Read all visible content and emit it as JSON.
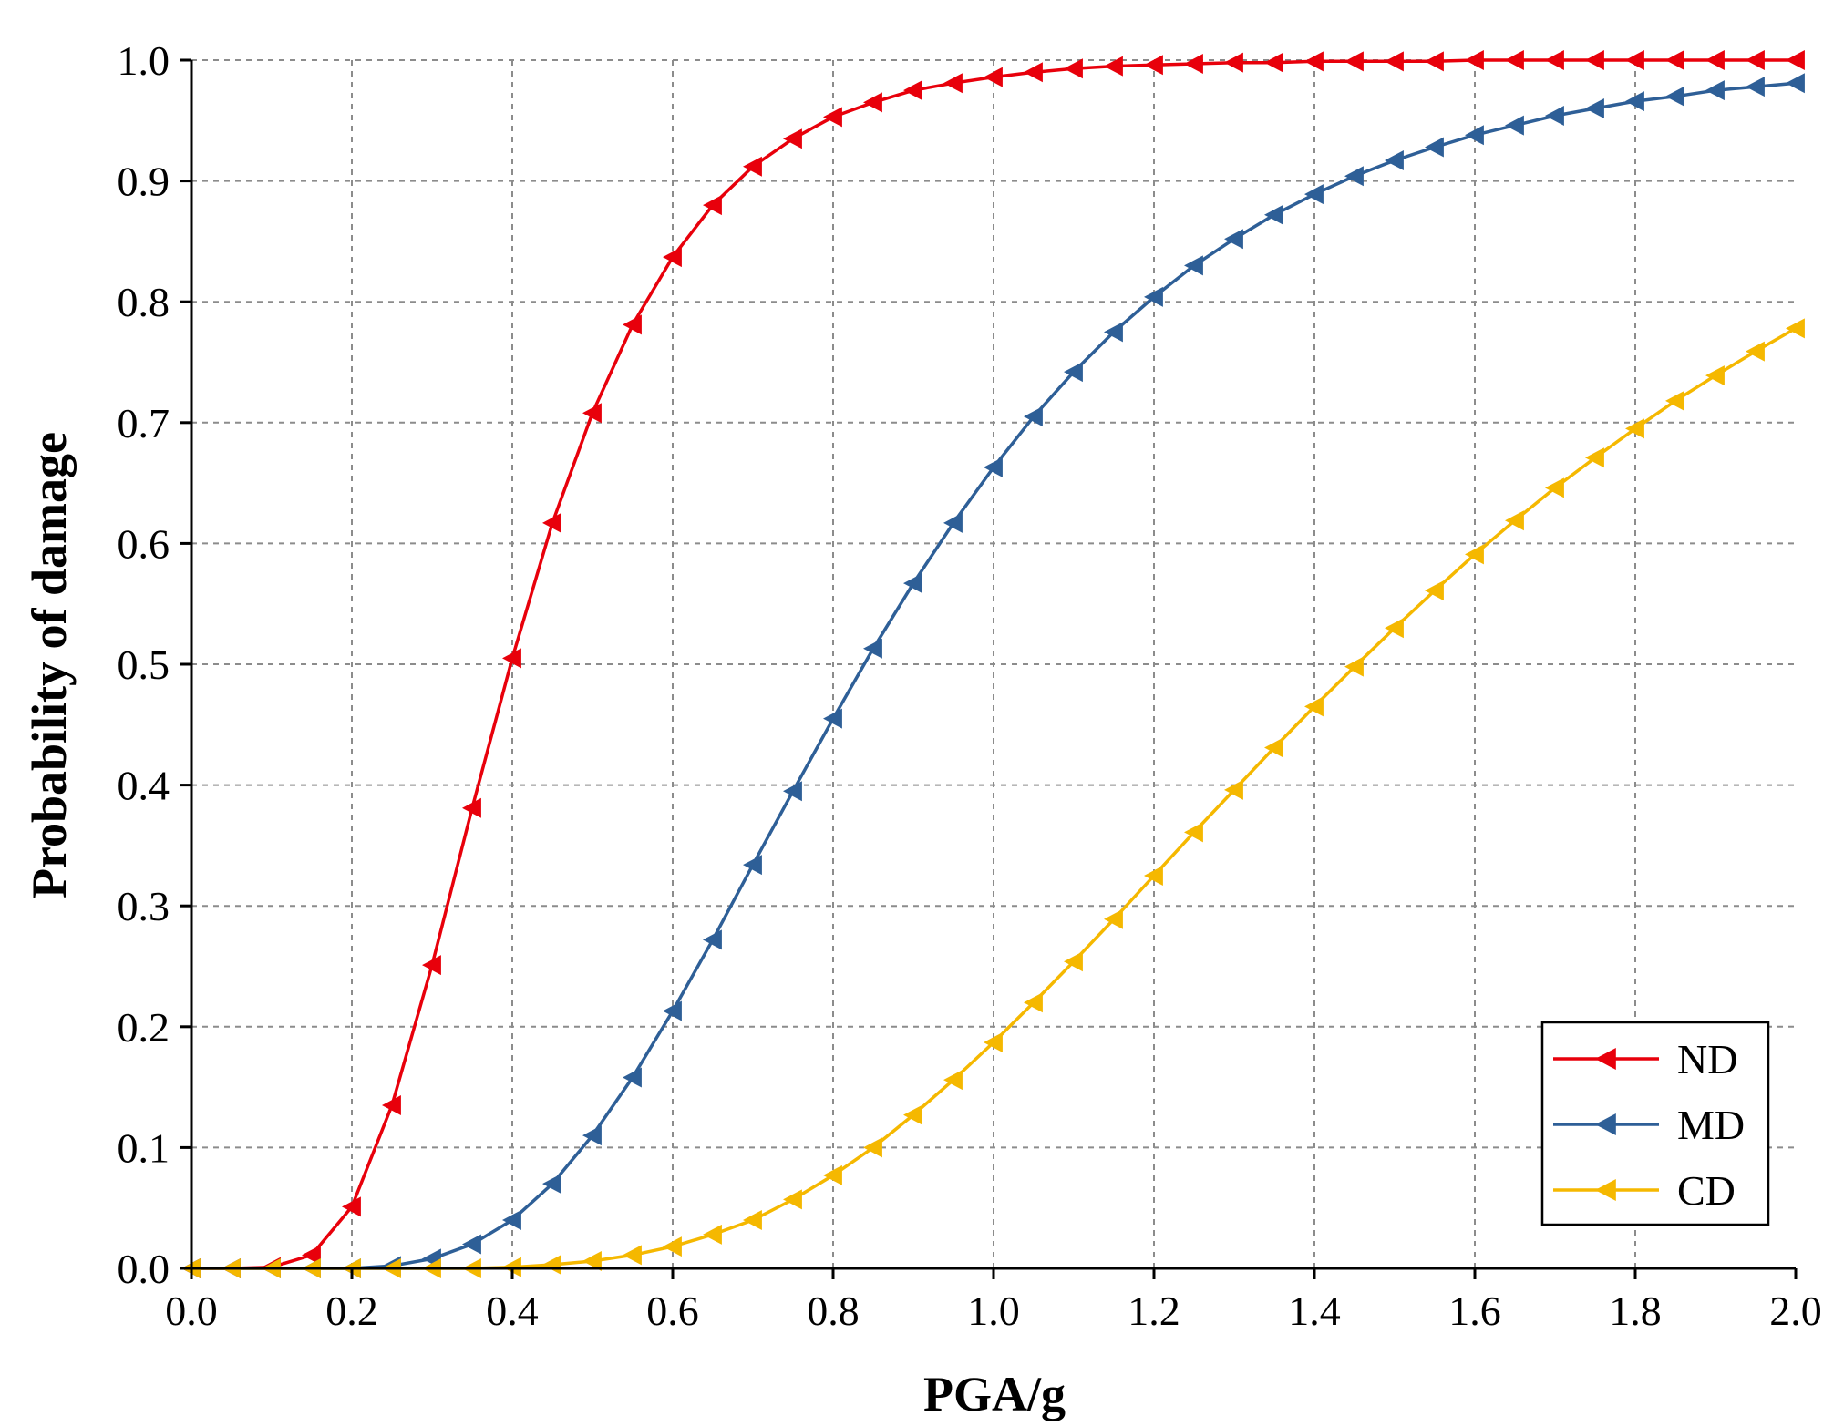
{
  "chart_data": {
    "type": "line",
    "xlabel": "PGA/g",
    "ylabel": "Probability of damage",
    "xlim": [
      0.0,
      2.0
    ],
    "ylim": [
      0.0,
      1.0
    ],
    "x_ticks": [
      "0.0",
      "0.2",
      "0.4",
      "0.6",
      "0.8",
      "1.0",
      "1.2",
      "1.4",
      "1.6",
      "1.8",
      "2.0"
    ],
    "y_ticks": [
      "0.0",
      "0.1",
      "0.2",
      "0.3",
      "0.4",
      "0.5",
      "0.6",
      "0.7",
      "0.8",
      "0.9",
      "1.0"
    ],
    "grid": true,
    "legend_position": "bottom-right",
    "marker": "left-triangle",
    "x": [
      0.0,
      0.05,
      0.1,
      0.15,
      0.2,
      0.25,
      0.3,
      0.35,
      0.4,
      0.45,
      0.5,
      0.55,
      0.6,
      0.65,
      0.7,
      0.75,
      0.8,
      0.85,
      0.9,
      0.95,
      1.0,
      1.05,
      1.1,
      1.15,
      1.2,
      1.25,
      1.3,
      1.35,
      1.4,
      1.45,
      1.5,
      1.55,
      1.6,
      1.65,
      1.7,
      1.75,
      1.8,
      1.85,
      1.9,
      1.95,
      2.0
    ],
    "series": [
      {
        "name": "ND",
        "color": "#e8000b",
        "values": [
          0.0,
          0.0,
          0.001,
          0.011,
          0.051,
          0.135,
          0.251,
          0.381,
          0.505,
          0.617,
          0.708,
          0.781,
          0.837,
          0.88,
          0.912,
          0.935,
          0.953,
          0.965,
          0.975,
          0.981,
          0.986,
          0.99,
          0.993,
          0.995,
          0.996,
          0.997,
          0.998,
          0.998,
          0.999,
          0.999,
          0.999,
          0.999,
          1.0,
          1.0,
          1.0,
          1.0,
          1.0,
          1.0,
          1.0,
          1.0,
          1.0
        ]
      },
      {
        "name": "MD",
        "color": "#2e5f97",
        "values": [
          0.0,
          0.0,
          0.0,
          0.0,
          0.0,
          0.002,
          0.008,
          0.02,
          0.04,
          0.07,
          0.11,
          0.158,
          0.213,
          0.272,
          0.334,
          0.395,
          0.455,
          0.513,
          0.567,
          0.617,
          0.663,
          0.705,
          0.742,
          0.775,
          0.804,
          0.83,
          0.852,
          0.872,
          0.889,
          0.904,
          0.917,
          0.928,
          0.938,
          0.946,
          0.954,
          0.96,
          0.966,
          0.97,
          0.975,
          0.978,
          0.981
        ]
      },
      {
        "name": "CD",
        "color": "#f5b800",
        "values": [
          0.0,
          0.0,
          0.0,
          0.0,
          0.0,
          0.0,
          0.0,
          0.0,
          0.001,
          0.003,
          0.006,
          0.011,
          0.018,
          0.028,
          0.04,
          0.057,
          0.077,
          0.1,
          0.127,
          0.156,
          0.187,
          0.22,
          0.254,
          0.289,
          0.325,
          0.361,
          0.396,
          0.431,
          0.465,
          0.498,
          0.53,
          0.561,
          0.591,
          0.619,
          0.646,
          0.671,
          0.695,
          0.718,
          0.739,
          0.759,
          0.778
        ]
      }
    ]
  }
}
